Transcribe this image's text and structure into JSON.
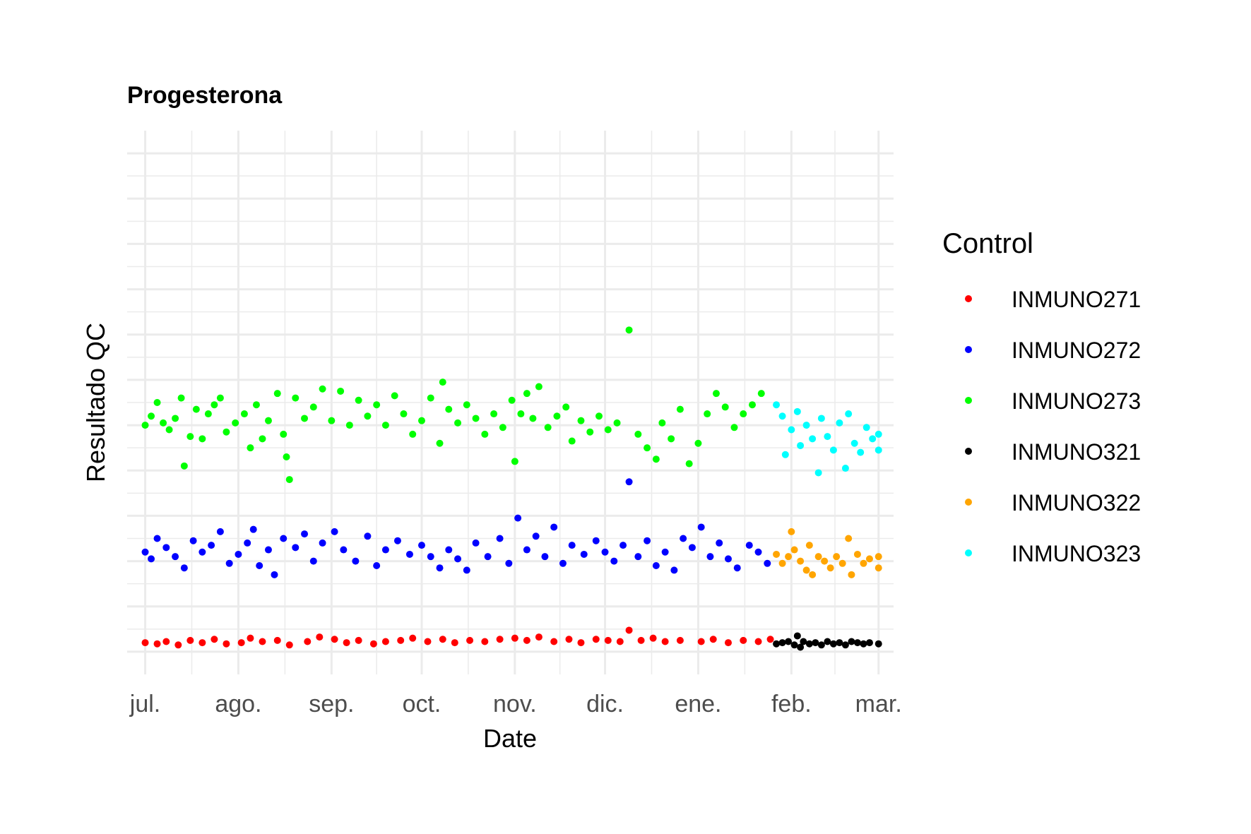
{
  "chart_data": {
    "type": "scatter",
    "title": "Progesterona",
    "xlabel": "Date",
    "ylabel": "Resultado QC",
    "x_type": "date",
    "xlim": [
      "2023-06-25",
      "2024-03-06"
    ],
    "ylim": [
      -1.0,
      23.0
    ],
    "x_ticks": [
      {
        "label": "jul.",
        "date": "2023-07-01"
      },
      {
        "label": "ago.",
        "date": "2023-08-01"
      },
      {
        "label": "sep.",
        "date": "2023-09-01"
      },
      {
        "label": "oct.",
        "date": "2023-10-01"
      },
      {
        "label": "nov.",
        "date": "2023-11-01"
      },
      {
        "label": "dic.",
        "date": "2023-12-01"
      },
      {
        "label": "ene.",
        "date": "2024-01-01"
      },
      {
        "label": "feb.",
        "date": "2024-02-01"
      },
      {
        "label": "mar.",
        "date": "2024-03-01"
      }
    ],
    "y_ticks_labeled": false,
    "grid": true,
    "legend": {
      "title": "Control",
      "position": "right"
    },
    "series": [
      {
        "name": "INMUNO271",
        "color": "#ff0000",
        "points": [
          [
            "2023-07-01",
            0.4
          ],
          [
            "2023-07-05",
            0.35
          ],
          [
            "2023-07-08",
            0.45
          ],
          [
            "2023-07-12",
            0.3
          ],
          [
            "2023-07-16",
            0.5
          ],
          [
            "2023-07-20",
            0.4
          ],
          [
            "2023-07-24",
            0.55
          ],
          [
            "2023-07-28",
            0.35
          ],
          [
            "2023-08-02",
            0.4
          ],
          [
            "2023-08-05",
            0.6
          ],
          [
            "2023-08-09",
            0.45
          ],
          [
            "2023-08-14",
            0.5
          ],
          [
            "2023-08-18",
            0.3
          ],
          [
            "2023-08-24",
            0.45
          ],
          [
            "2023-08-28",
            0.65
          ],
          [
            "2023-09-02",
            0.55
          ],
          [
            "2023-09-06",
            0.4
          ],
          [
            "2023-09-10",
            0.5
          ],
          [
            "2023-09-15",
            0.35
          ],
          [
            "2023-09-19",
            0.45
          ],
          [
            "2023-09-24",
            0.5
          ],
          [
            "2023-09-28",
            0.6
          ],
          [
            "2023-10-03",
            0.45
          ],
          [
            "2023-10-08",
            0.55
          ],
          [
            "2023-10-12",
            0.4
          ],
          [
            "2023-10-17",
            0.5
          ],
          [
            "2023-10-22",
            0.45
          ],
          [
            "2023-10-27",
            0.55
          ],
          [
            "2023-11-01",
            0.6
          ],
          [
            "2023-11-05",
            0.5
          ],
          [
            "2023-11-09",
            0.65
          ],
          [
            "2023-11-14",
            0.45
          ],
          [
            "2023-11-19",
            0.55
          ],
          [
            "2023-11-23",
            0.4
          ],
          [
            "2023-11-28",
            0.55
          ],
          [
            "2023-12-02",
            0.5
          ],
          [
            "2023-12-06",
            0.45
          ],
          [
            "2023-12-09",
            0.95
          ],
          [
            "2023-12-13",
            0.5
          ],
          [
            "2023-12-17",
            0.6
          ],
          [
            "2023-12-21",
            0.45
          ],
          [
            "2023-12-26",
            0.5
          ],
          [
            "2024-01-02",
            0.45
          ],
          [
            "2024-01-06",
            0.55
          ],
          [
            "2024-01-11",
            0.4
          ],
          [
            "2024-01-16",
            0.5
          ],
          [
            "2024-01-21",
            0.45
          ],
          [
            "2024-01-25",
            0.55
          ]
        ]
      },
      {
        "name": "INMUNO272",
        "color": "#0000ff",
        "points": [
          [
            "2023-07-01",
            4.4
          ],
          [
            "2023-07-03",
            4.1
          ],
          [
            "2023-07-05",
            5.0
          ],
          [
            "2023-07-08",
            4.6
          ],
          [
            "2023-07-11",
            4.2
          ],
          [
            "2023-07-14",
            3.7
          ],
          [
            "2023-07-17",
            4.9
          ],
          [
            "2023-07-20",
            4.4
          ],
          [
            "2023-07-23",
            4.7
          ],
          [
            "2023-07-26",
            5.3
          ],
          [
            "2023-07-29",
            3.9
          ],
          [
            "2023-08-01",
            4.3
          ],
          [
            "2023-08-04",
            4.8
          ],
          [
            "2023-08-06",
            5.4
          ],
          [
            "2023-08-08",
            3.8
          ],
          [
            "2023-08-11",
            4.5
          ],
          [
            "2023-08-13",
            3.4
          ],
          [
            "2023-08-16",
            5.0
          ],
          [
            "2023-08-20",
            4.6
          ],
          [
            "2023-08-23",
            5.2
          ],
          [
            "2023-08-26",
            4.0
          ],
          [
            "2023-08-29",
            4.8
          ],
          [
            "2023-09-02",
            5.3
          ],
          [
            "2023-09-05",
            4.5
          ],
          [
            "2023-09-09",
            4.0
          ],
          [
            "2023-09-13",
            5.1
          ],
          [
            "2023-09-16",
            3.8
          ],
          [
            "2023-09-19",
            4.5
          ],
          [
            "2023-09-23",
            4.9
          ],
          [
            "2023-09-27",
            4.3
          ],
          [
            "2023-10-01",
            4.7
          ],
          [
            "2023-10-04",
            4.2
          ],
          [
            "2023-10-07",
            3.7
          ],
          [
            "2023-10-10",
            4.5
          ],
          [
            "2023-10-13",
            4.1
          ],
          [
            "2023-10-16",
            3.6
          ],
          [
            "2023-10-19",
            4.8
          ],
          [
            "2023-10-23",
            4.2
          ],
          [
            "2023-10-27",
            5.0
          ],
          [
            "2023-10-30",
            3.9
          ],
          [
            "2023-11-02",
            5.9
          ],
          [
            "2023-11-05",
            4.5
          ],
          [
            "2023-11-08",
            5.1
          ],
          [
            "2023-11-11",
            4.2
          ],
          [
            "2023-11-14",
            5.5
          ],
          [
            "2023-11-17",
            3.9
          ],
          [
            "2023-11-20",
            4.7
          ],
          [
            "2023-11-24",
            4.3
          ],
          [
            "2023-11-28",
            4.9
          ],
          [
            "2023-12-01",
            4.4
          ],
          [
            "2023-12-04",
            4.0
          ],
          [
            "2023-12-07",
            4.7
          ],
          [
            "2023-12-09",
            7.5
          ],
          [
            "2023-12-12",
            4.2
          ],
          [
            "2023-12-15",
            4.9
          ],
          [
            "2023-12-18",
            3.8
          ],
          [
            "2023-12-21",
            4.4
          ],
          [
            "2023-12-24",
            3.6
          ],
          [
            "2023-12-27",
            5.0
          ],
          [
            "2023-12-30",
            4.6
          ],
          [
            "2024-01-02",
            5.5
          ],
          [
            "2024-01-05",
            4.2
          ],
          [
            "2024-01-08",
            4.8
          ],
          [
            "2024-01-11",
            4.1
          ],
          [
            "2024-01-14",
            3.7
          ],
          [
            "2024-01-18",
            4.7
          ],
          [
            "2024-01-21",
            4.4
          ],
          [
            "2024-01-24",
            3.9
          ]
        ]
      },
      {
        "name": "INMUNO273",
        "color": "#00ff00",
        "points": [
          [
            "2023-07-01",
            10.0
          ],
          [
            "2023-07-03",
            10.4
          ],
          [
            "2023-07-05",
            11.0
          ],
          [
            "2023-07-07",
            10.1
          ],
          [
            "2023-07-09",
            9.8
          ],
          [
            "2023-07-11",
            10.3
          ],
          [
            "2023-07-13",
            11.2
          ],
          [
            "2023-07-14",
            8.2
          ],
          [
            "2023-07-16",
            9.5
          ],
          [
            "2023-07-18",
            10.7
          ],
          [
            "2023-07-20",
            9.4
          ],
          [
            "2023-07-22",
            10.5
          ],
          [
            "2023-07-24",
            10.9
          ],
          [
            "2023-07-26",
            11.2
          ],
          [
            "2023-07-28",
            9.7
          ],
          [
            "2023-07-31",
            10.1
          ],
          [
            "2023-08-03",
            10.5
          ],
          [
            "2023-08-05",
            9.0
          ],
          [
            "2023-08-07",
            10.9
          ],
          [
            "2023-08-09",
            9.4
          ],
          [
            "2023-08-11",
            10.2
          ],
          [
            "2023-08-14",
            11.4
          ],
          [
            "2023-08-16",
            9.6
          ],
          [
            "2023-08-17",
            8.6
          ],
          [
            "2023-08-18",
            7.6
          ],
          [
            "2023-08-20",
            11.2
          ],
          [
            "2023-08-23",
            10.3
          ],
          [
            "2023-08-26",
            10.8
          ],
          [
            "2023-08-29",
            11.6
          ],
          [
            "2023-09-01",
            10.2
          ],
          [
            "2023-09-04",
            11.5
          ],
          [
            "2023-09-07",
            10.0
          ],
          [
            "2023-09-10",
            11.1
          ],
          [
            "2023-09-13",
            10.4
          ],
          [
            "2023-09-16",
            10.9
          ],
          [
            "2023-09-19",
            10.0
          ],
          [
            "2023-09-22",
            11.3
          ],
          [
            "2023-09-25",
            10.5
          ],
          [
            "2023-09-28",
            9.6
          ],
          [
            "2023-10-01",
            10.2
          ],
          [
            "2023-10-04",
            11.2
          ],
          [
            "2023-10-07",
            9.2
          ],
          [
            "2023-10-08",
            11.9
          ],
          [
            "2023-10-10",
            10.7
          ],
          [
            "2023-10-13",
            10.1
          ],
          [
            "2023-10-16",
            10.9
          ],
          [
            "2023-10-19",
            10.3
          ],
          [
            "2023-10-22",
            9.6
          ],
          [
            "2023-10-25",
            10.5
          ],
          [
            "2023-10-28",
            9.9
          ],
          [
            "2023-10-31",
            11.1
          ],
          [
            "2023-11-01",
            8.4
          ],
          [
            "2023-11-03",
            10.5
          ],
          [
            "2023-11-05",
            11.4
          ],
          [
            "2023-11-07",
            10.3
          ],
          [
            "2023-11-09",
            11.7
          ],
          [
            "2023-11-12",
            9.9
          ],
          [
            "2023-11-15",
            10.4
          ],
          [
            "2023-11-18",
            10.8
          ],
          [
            "2023-11-20",
            9.3
          ],
          [
            "2023-11-23",
            10.2
          ],
          [
            "2023-11-26",
            9.7
          ],
          [
            "2023-11-29",
            10.4
          ],
          [
            "2023-12-02",
            9.8
          ],
          [
            "2023-12-05",
            10.1
          ],
          [
            "2023-12-09",
            14.2
          ],
          [
            "2023-12-12",
            9.6
          ],
          [
            "2023-12-15",
            9.0
          ],
          [
            "2023-12-18",
            8.5
          ],
          [
            "2023-12-20",
            10.1
          ],
          [
            "2023-12-23",
            9.4
          ],
          [
            "2023-12-26",
            10.7
          ],
          [
            "2023-12-29",
            8.3
          ],
          [
            "2024-01-01",
            9.2
          ],
          [
            "2024-01-04",
            10.5
          ],
          [
            "2024-01-07",
            11.4
          ],
          [
            "2024-01-10",
            10.8
          ],
          [
            "2024-01-13",
            9.9
          ],
          [
            "2024-01-16",
            10.5
          ],
          [
            "2024-01-19",
            10.9
          ],
          [
            "2024-01-22",
            11.4
          ]
        ]
      },
      {
        "name": "INMUNO321",
        "color": "#000000",
        "points": [
          [
            "2024-01-27",
            0.35
          ],
          [
            "2024-01-29",
            0.4
          ],
          [
            "2024-01-31",
            0.45
          ],
          [
            "2024-02-02",
            0.3
          ],
          [
            "2024-02-03",
            0.7
          ],
          [
            "2024-02-04",
            0.2
          ],
          [
            "2024-02-05",
            0.45
          ],
          [
            "2024-02-07",
            0.35
          ],
          [
            "2024-02-09",
            0.4
          ],
          [
            "2024-02-11",
            0.3
          ],
          [
            "2024-02-13",
            0.45
          ],
          [
            "2024-02-15",
            0.35
          ],
          [
            "2024-02-17",
            0.4
          ],
          [
            "2024-02-19",
            0.3
          ],
          [
            "2024-02-21",
            0.45
          ],
          [
            "2024-02-23",
            0.4
          ],
          [
            "2024-02-25",
            0.35
          ],
          [
            "2024-02-27",
            0.4
          ],
          [
            "2024-03-01",
            0.35
          ]
        ]
      },
      {
        "name": "INMUNO322",
        "color": "#ffa500",
        "points": [
          [
            "2024-01-27",
            4.3
          ],
          [
            "2024-01-29",
            3.9
          ],
          [
            "2024-01-31",
            4.2
          ],
          [
            "2024-02-01",
            5.3
          ],
          [
            "2024-02-02",
            4.5
          ],
          [
            "2024-02-04",
            4.0
          ],
          [
            "2024-02-06",
            3.6
          ],
          [
            "2024-02-07",
            4.7
          ],
          [
            "2024-02-08",
            3.4
          ],
          [
            "2024-02-10",
            4.2
          ],
          [
            "2024-02-12",
            4.0
          ],
          [
            "2024-02-14",
            3.7
          ],
          [
            "2024-02-16",
            4.2
          ],
          [
            "2024-02-18",
            3.9
          ],
          [
            "2024-02-20",
            5.0
          ],
          [
            "2024-02-21",
            3.4
          ],
          [
            "2024-02-23",
            4.3
          ],
          [
            "2024-02-25",
            3.9
          ],
          [
            "2024-02-27",
            4.1
          ],
          [
            "2024-03-01",
            4.2
          ],
          [
            "2024-03-01",
            3.7
          ]
        ]
      },
      {
        "name": "INMUNO323",
        "color": "#00ffff",
        "points": [
          [
            "2024-01-27",
            10.9
          ],
          [
            "2024-01-29",
            10.4
          ],
          [
            "2024-01-30",
            8.7
          ],
          [
            "2024-02-01",
            9.8
          ],
          [
            "2024-02-03",
            10.6
          ],
          [
            "2024-02-04",
            9.1
          ],
          [
            "2024-02-06",
            10.0
          ],
          [
            "2024-02-08",
            9.4
          ],
          [
            "2024-02-10",
            7.9
          ],
          [
            "2024-02-11",
            10.3
          ],
          [
            "2024-02-13",
            9.5
          ],
          [
            "2024-02-15",
            8.9
          ],
          [
            "2024-02-17",
            10.1
          ],
          [
            "2024-02-19",
            8.1
          ],
          [
            "2024-02-20",
            10.5
          ],
          [
            "2024-02-22",
            9.2
          ],
          [
            "2024-02-24",
            8.8
          ],
          [
            "2024-02-26",
            9.9
          ],
          [
            "2024-02-28",
            9.4
          ],
          [
            "2024-03-01",
            8.9
          ],
          [
            "2024-03-01",
            9.6
          ]
        ]
      }
    ]
  }
}
